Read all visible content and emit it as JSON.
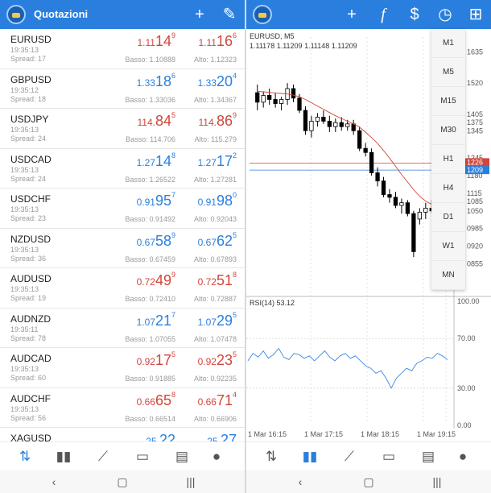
{
  "quotes_screen": {
    "title": "Quotazioni",
    "header_icons": [
      "plus-icon",
      "pencil-icon"
    ],
    "rows": [
      {
        "symbol": "EURUSD",
        "time": "19:35:13",
        "spread": "Spread: 17",
        "bid_small": "1.11",
        "bid_big": "14",
        "bid_sup": "9",
        "ask_small": "1.11",
        "ask_big": "16",
        "ask_sup": "6",
        "low": "Basso: 1.10888",
        "high": "Alto: 1.12323",
        "color": "red"
      },
      {
        "symbol": "GBPUSD",
        "time": "19:35:12",
        "spread": "Spread: 18",
        "bid_small": "1.33",
        "bid_big": "18",
        "bid_sup": "6",
        "ask_small": "1.33",
        "ask_big": "20",
        "ask_sup": "4",
        "low": "Basso: 1.33036",
        "high": "Alto: 1.34367",
        "color": "blue"
      },
      {
        "symbol": "USDJPY",
        "time": "19:35:13",
        "spread": "Spread: 24",
        "bid_small": "114.",
        "bid_big": "84",
        "bid_sup": "5",
        "ask_small": "114.",
        "ask_big": "86",
        "ask_sup": "9",
        "low": "Basso: 114.706",
        "high": "Alto: 115.279",
        "color": "red"
      },
      {
        "symbol": "USDCAD",
        "time": "19:35:13",
        "spread": "Spread: 24",
        "bid_small": "1.27",
        "bid_big": "14",
        "bid_sup": "8",
        "ask_small": "1.27",
        "ask_big": "17",
        "ask_sup": "2",
        "low": "Basso: 1.26522",
        "high": "Alto: 1.27281",
        "color": "blue"
      },
      {
        "symbol": "USDCHF",
        "time": "19:35:13",
        "spread": "Spread: 23",
        "bid_small": "0.91",
        "bid_big": "95",
        "bid_sup": "7",
        "ask_small": "0.91",
        "ask_big": "98",
        "ask_sup": "0",
        "low": "Basso: 0.91492",
        "high": "Alto: 0.92043",
        "color": "blue"
      },
      {
        "symbol": "NZDUSD",
        "time": "19:35:13",
        "spread": "Spread: 36",
        "bid_small": "0.67",
        "bid_big": "58",
        "bid_sup": "9",
        "ask_small": "0.67",
        "ask_big": "62",
        "ask_sup": "5",
        "low": "Basso: 0.67459",
        "high": "Alto: 0.67893",
        "color": "blue"
      },
      {
        "symbol": "AUDUSD",
        "time": "19:35:13",
        "spread": "Spread: 19",
        "bid_small": "0.72",
        "bid_big": "49",
        "bid_sup": "9",
        "ask_small": "0.72",
        "ask_big": "51",
        "ask_sup": "8",
        "low": "Basso: 0.72410",
        "high": "Alto: 0.72887",
        "color": "red"
      },
      {
        "symbol": "AUDNZD",
        "time": "19:35:11",
        "spread": "Spread: 78",
        "bid_small": "1.07",
        "bid_big": "21",
        "bid_sup": "7",
        "ask_small": "1.07",
        "ask_big": "29",
        "ask_sup": "5",
        "low": "Basso: 1.07055",
        "high": "Alto: 1.07478",
        "color": "blue"
      },
      {
        "symbol": "AUDCAD",
        "time": "19:35:13",
        "spread": "Spread: 60",
        "bid_small": "0.92",
        "bid_big": "17",
        "bid_sup": "5",
        "ask_small": "0.92",
        "ask_big": "23",
        "ask_sup": "5",
        "low": "Basso: 0.91885",
        "high": "Alto: 0.92235",
        "color": "red"
      },
      {
        "symbol": "AUDCHF",
        "time": "19:35:13",
        "spread": "Spread: 56",
        "bid_small": "0.66",
        "bid_big": "65",
        "bid_sup": "8",
        "ask_small": "0.66",
        "ask_big": "71",
        "ask_sup": "4",
        "low": "Basso: 0.66514",
        "high": "Alto: 0.66906",
        "color": "red"
      },
      {
        "symbol": "XAGUSD",
        "time": "",
        "spread": "",
        "bid_small": "25.",
        "bid_big": "22",
        "bid_sup": "",
        "ask_small": "25.",
        "ask_big": "27",
        "ask_sup": "",
        "low": "",
        "high": "",
        "color": "blue"
      }
    ]
  },
  "chart_screen": {
    "header_icons": [
      "plus-icon",
      "function-icon",
      "trade-icon",
      "clock-icon",
      "new-document-icon"
    ],
    "symbol_title": "EURUSD, M5",
    "ohlc": "1.11178 1.11209 1.11148 1.11209",
    "rsi_label": "RSI(14) 53.12",
    "timeframes": [
      "M1",
      "M5",
      "M15",
      "M30",
      "H1",
      "H4",
      "D1",
      "W1",
      "MN"
    ]
  },
  "bottom_nav": {
    "items": [
      "quotes-icon",
      "chart-icon",
      "trade-icon",
      "history-icon",
      "news-icon",
      "chat-icon"
    ]
  },
  "system_nav": [
    "back-icon",
    "home-icon",
    "recents-icon"
  ],
  "chart_data": [
    {
      "type": "candlestick",
      "title": "EURUSD, M5",
      "price_axis_labels": [
        "1635",
        "1520",
        "1405",
        "1375",
        "1345",
        "1245",
        "1226",
        "1209",
        "1180",
        "1115",
        "1085",
        "1050",
        "0985",
        "0920",
        "0855"
      ],
      "time_axis_labels": [
        "1 Mar 16:15",
        "1 Mar 17:15",
        "1 Mar 18:15",
        "1 Mar 19:15"
      ],
      "bid_line": "1226",
      "ask_line": "1209",
      "candles": [
        {
          "o": 1485,
          "h": 1515,
          "l": 1420,
          "c": 1450
        },
        {
          "o": 1450,
          "h": 1490,
          "l": 1430,
          "c": 1475
        },
        {
          "o": 1475,
          "h": 1500,
          "l": 1440,
          "c": 1460
        },
        {
          "o": 1460,
          "h": 1485,
          "l": 1430,
          "c": 1445
        },
        {
          "o": 1445,
          "h": 1470,
          "l": 1420,
          "c": 1460
        },
        {
          "o": 1460,
          "h": 1520,
          "l": 1440,
          "c": 1500
        },
        {
          "o": 1500,
          "h": 1515,
          "l": 1450,
          "c": 1465
        },
        {
          "o": 1465,
          "h": 1480,
          "l": 1410,
          "c": 1420
        },
        {
          "o": 1420,
          "h": 1435,
          "l": 1330,
          "c": 1345
        },
        {
          "o": 1345,
          "h": 1400,
          "l": 1320,
          "c": 1380
        },
        {
          "o": 1380,
          "h": 1410,
          "l": 1360,
          "c": 1395
        },
        {
          "o": 1395,
          "h": 1420,
          "l": 1370,
          "c": 1380
        },
        {
          "o": 1380,
          "h": 1400,
          "l": 1340,
          "c": 1360
        },
        {
          "o": 1360,
          "h": 1390,
          "l": 1340,
          "c": 1375
        },
        {
          "o": 1375,
          "h": 1395,
          "l": 1345,
          "c": 1360
        },
        {
          "o": 1360,
          "h": 1385,
          "l": 1345,
          "c": 1370
        },
        {
          "o": 1370,
          "h": 1385,
          "l": 1330,
          "c": 1345
        },
        {
          "o": 1345,
          "h": 1360,
          "l": 1270,
          "c": 1280
        },
        {
          "o": 1280,
          "h": 1300,
          "l": 1250,
          "c": 1265
        },
        {
          "o": 1265,
          "h": 1280,
          "l": 1180,
          "c": 1190
        },
        {
          "o": 1190,
          "h": 1210,
          "l": 1140,
          "c": 1160
        },
        {
          "o": 1160,
          "h": 1175,
          "l": 1100,
          "c": 1110
        },
        {
          "o": 1110,
          "h": 1130,
          "l": 1080,
          "c": 1100
        },
        {
          "o": 1100,
          "h": 1120,
          "l": 1060,
          "c": 1070
        },
        {
          "o": 1070,
          "h": 1095,
          "l": 1040,
          "c": 1080
        },
        {
          "o": 1080,
          "h": 1090,
          "l": 1030,
          "c": 1040
        },
        {
          "o": 1040,
          "h": 1050,
          "l": 880,
          "c": 900
        },
        {
          "o": 1020,
          "h": 1060,
          "l": 1000,
          "c": 1045
        },
        {
          "o": 1045,
          "h": 1080,
          "l": 1020,
          "c": 1060
        },
        {
          "o": 1060,
          "h": 1090,
          "l": 1040,
          "c": 1050
        }
      ],
      "ma": [
        1490,
        1488,
        1486,
        1484,
        1482,
        1480,
        1476,
        1470,
        1460,
        1448,
        1436,
        1424,
        1412,
        1400,
        1390,
        1380,
        1370,
        1358,
        1340,
        1320,
        1298,
        1272,
        1244,
        1214,
        1184,
        1156,
        1128,
        1104,
        1086,
        1074
      ]
    },
    {
      "type": "line",
      "title": "RSI(14) 53.12",
      "y_axis_labels": [
        "100.00",
        "70.00",
        "30.00",
        "0.00"
      ],
      "ylim": [
        0,
        100
      ],
      "values": [
        52,
        58,
        55,
        60,
        54,
        57,
        62,
        55,
        53,
        58,
        57,
        54,
        56,
        52,
        56,
        60,
        55,
        52,
        56,
        58,
        54,
        56,
        52,
        48,
        46,
        42,
        44,
        38,
        30,
        38,
        42,
        46,
        44,
        50,
        52,
        55,
        54,
        58,
        56,
        53
      ]
    }
  ]
}
